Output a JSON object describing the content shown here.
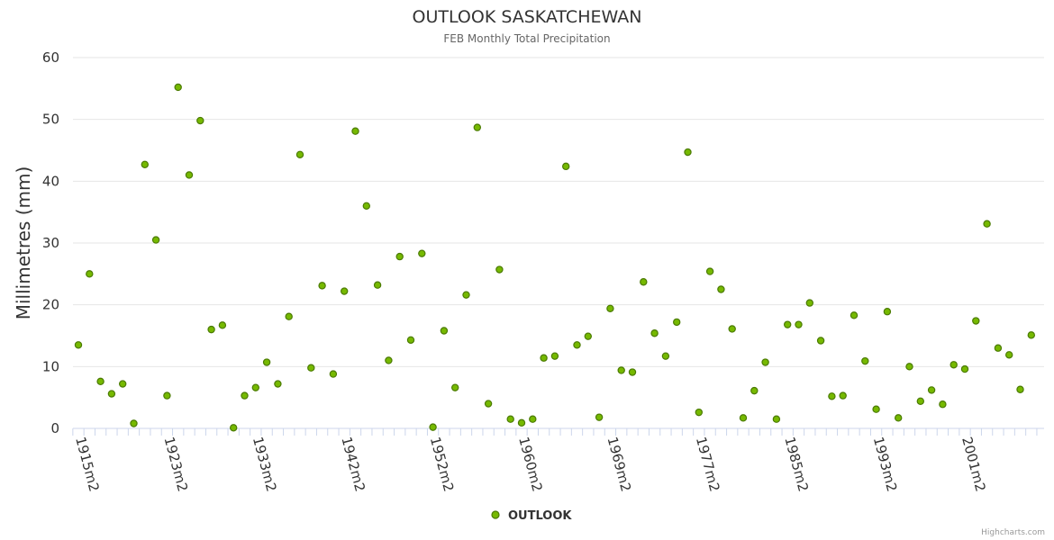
{
  "chart_data": {
    "type": "scatter",
    "title": "OUTLOOK SASKATCHEWAN",
    "subtitle": "FEB Monthly Total Precipitation",
    "ylabel": "Millimetres (mm)",
    "xlabel": "",
    "ylim": [
      0,
      60
    ],
    "yticks": [
      0,
      10,
      20,
      30,
      40,
      50,
      60
    ],
    "grid": true,
    "legend": "bottom-center",
    "xtick_labels": [
      {
        "index": 0,
        "label": "1915m2"
      },
      {
        "index": 8,
        "label": "1923m2"
      },
      {
        "index": 16,
        "label": "1933m2"
      },
      {
        "index": 24,
        "label": "1942m2"
      },
      {
        "index": 32,
        "label": "1952m2"
      },
      {
        "index": 40,
        "label": "1960m2"
      },
      {
        "index": 48,
        "label": "1969m2"
      },
      {
        "index": 56,
        "label": "1977m2"
      },
      {
        "index": 64,
        "label": "1985m2"
      },
      {
        "index": 72,
        "label": "1993m2"
      },
      {
        "index": 80,
        "label": "2001m2"
      }
    ],
    "series": [
      {
        "name": "OUTLOOK",
        "color": "#76b900",
        "stroke": "#4a7a00",
        "values": [
          13.5,
          25.0,
          7.6,
          5.6,
          7.2,
          0.8,
          42.7,
          30.5,
          5.3,
          55.2,
          41.0,
          49.8,
          16.0,
          16.7,
          0.1,
          5.3,
          6.6,
          10.7,
          7.2,
          18.1,
          44.3,
          9.8,
          23.1,
          8.8,
          22.2,
          48.1,
          36.0,
          23.2,
          11.0,
          27.8,
          14.3,
          28.3,
          0.2,
          15.8,
          6.6,
          21.6,
          48.7,
          4.0,
          25.7,
          1.5,
          0.9,
          1.5,
          11.4,
          11.7,
          42.4,
          13.5,
          14.9,
          1.8,
          19.4,
          9.4,
          9.1,
          23.7,
          15.4,
          11.7,
          17.2,
          44.7,
          2.6,
          25.4,
          22.5,
          16.1,
          1.7,
          6.1,
          10.7,
          1.5,
          16.8,
          16.8,
          20.3,
          14.2,
          5.2,
          5.3,
          18.3,
          10.9,
          3.1,
          18.9,
          1.7,
          10.0,
          4.4,
          6.2,
          3.9,
          10.3,
          9.6,
          17.4,
          33.1,
          13.0,
          11.9,
          6.3,
          15.1
        ]
      }
    ]
  },
  "credits": "Highcharts.com"
}
